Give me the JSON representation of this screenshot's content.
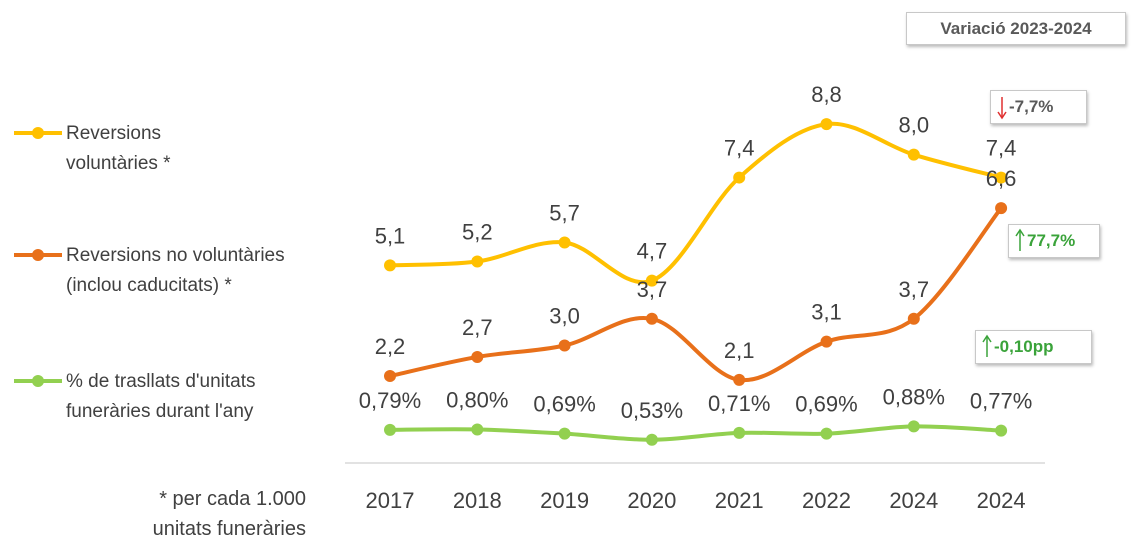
{
  "chart_data": {
    "type": "line",
    "categories": [
      "2017",
      "2018",
      "2019",
      "2020",
      "2021",
      "2022",
      "2024",
      "2024"
    ],
    "series": [
      {
        "name": "Reversions voluntàries *",
        "color": "#ffc000",
        "values": [
          5.1,
          5.2,
          5.7,
          4.7,
          7.4,
          8.8,
          8.0,
          7.4
        ],
        "value_labels": [
          "5,1",
          "5,2",
          "5,7",
          "4,7",
          "7,4",
          "8,8",
          "8,0",
          "7,4"
        ]
      },
      {
        "name": "Reversions no voluntàries (inclou caducitats) *",
        "color": "#e8701a",
        "values": [
          2.2,
          2.7,
          3.0,
          3.7,
          2.1,
          3.1,
          3.7,
          6.6
        ],
        "value_labels": [
          "2,2",
          "2,7",
          "3,0",
          "3,7",
          "2,1",
          "3,1",
          "3,7",
          "6,6"
        ]
      },
      {
        "name": "% de trasllats d'unitats funeràries durant l'any",
        "color": "#92d050",
        "values": [
          0.79,
          0.8,
          0.69,
          0.53,
          0.71,
          0.69,
          0.88,
          0.77
        ],
        "value_labels": [
          "0,79%",
          "0,80%",
          "0,69%",
          "0,53%",
          "0,71%",
          "0,69%",
          "0,88%",
          "0,77%"
        ]
      }
    ],
    "ylim": [
      0,
      12
    ],
    "header": "Variació 2023-2024",
    "annotations": [
      {
        "text": "-7,7%",
        "direction": "down"
      },
      {
        "text": "77,7%",
        "direction": "up"
      },
      {
        "text": "-0,10pp",
        "direction": "up"
      }
    ],
    "footnote": "* per cada 1.000 unitats funeràries"
  }
}
